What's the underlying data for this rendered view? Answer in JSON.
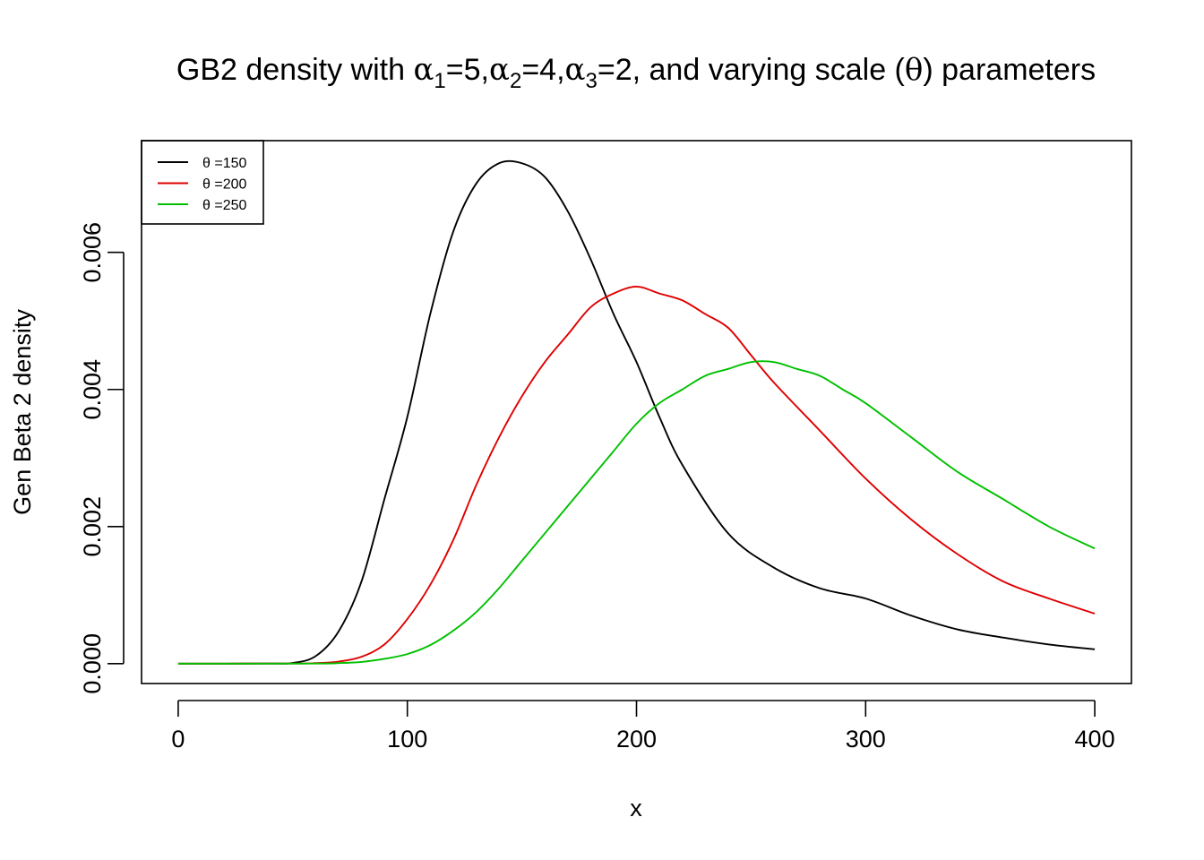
{
  "chart_data": {
    "type": "line",
    "title": {
      "prefix": "GB2 density with ",
      "sym": "α",
      "params": [
        {
          "sub": "1",
          "value": "=5,"
        },
        {
          "sub": "2",
          "value": "=4,"
        },
        {
          "sub": "3",
          "value": "=2, and varying scale ("
        }
      ],
      "theta": "θ",
      "suffix": ") parameters"
    },
    "xlabel": "x",
    "ylabel": "Gen Beta 2 density",
    "xlim": [
      -16,
      416
    ],
    "ylim": [
      -0.00029,
      0.00763
    ],
    "xticks": [
      0,
      100,
      200,
      300,
      400
    ],
    "xtick_labels": [
      "0",
      "100",
      "200",
      "300",
      "400"
    ],
    "yticks": [
      0,
      0.002,
      0.004,
      0.006
    ],
    "ytick_labels": [
      "0.000",
      "0.002",
      "0.004",
      "0.006"
    ],
    "grid": false,
    "legend_position": "top-left",
    "series": [
      {
        "name": "θ =150",
        "color": "#000000",
        "x": [
          0,
          40,
          50,
          60,
          70,
          80,
          90,
          100,
          110,
          120,
          130,
          140,
          150,
          160,
          170,
          180,
          190,
          200,
          210,
          220,
          240,
          260,
          280,
          300,
          320,
          340,
          360,
          380,
          400
        ],
        "y": [
          0,
          1e-06,
          1e-05,
          0.00011,
          0.00047,
          0.0012,
          0.0024,
          0.0036,
          0.0051,
          0.0063,
          0.007,
          0.0073,
          0.0073,
          0.0071,
          0.0066,
          0.0059,
          0.0051,
          0.0044,
          0.0036,
          0.0029,
          0.0019,
          0.0014,
          0.0011,
          0.00095,
          0.0007,
          0.0005,
          0.00038,
          0.00028,
          0.00021
        ]
      },
      {
        "name": "θ =200",
        "color": "#df0000",
        "x": [
          0,
          50,
          60,
          70,
          80,
          90,
          100,
          110,
          120,
          130,
          140,
          150,
          160,
          170,
          180,
          190,
          200,
          210,
          220,
          230,
          240,
          250,
          260,
          280,
          300,
          320,
          340,
          360,
          380,
          400
        ],
        "y": [
          0,
          2e-06,
          8e-06,
          3e-05,
          0.0001,
          0.00028,
          0.00065,
          0.00115,
          0.0018,
          0.0026,
          0.0033,
          0.0039,
          0.0044,
          0.0048,
          0.0052,
          0.0054,
          0.0055,
          0.0054,
          0.0053,
          0.0051,
          0.0049,
          0.0045,
          0.0041,
          0.0034,
          0.0027,
          0.0021,
          0.0016,
          0.0012,
          0.00095,
          0.00073
        ]
      },
      {
        "name": "θ =250",
        "color": "#00c000",
        "x": [
          0,
          60,
          70,
          80,
          90,
          100,
          110,
          120,
          130,
          140,
          150,
          160,
          170,
          180,
          190,
          200,
          210,
          220,
          230,
          240,
          250,
          260,
          270,
          280,
          290,
          300,
          320,
          340,
          360,
          380,
          400
        ],
        "y": [
          0,
          2e-06,
          8e-06,
          2.5e-05,
          7e-05,
          0.00014,
          0.00027,
          0.00048,
          0.00075,
          0.0011,
          0.0015,
          0.0019,
          0.0023,
          0.0027,
          0.0031,
          0.0035,
          0.0038,
          0.004,
          0.0042,
          0.0043,
          0.0044,
          0.0044,
          0.0043,
          0.0042,
          0.004,
          0.0038,
          0.0033,
          0.0028,
          0.0024,
          0.002,
          0.00168
        ]
      }
    ]
  }
}
